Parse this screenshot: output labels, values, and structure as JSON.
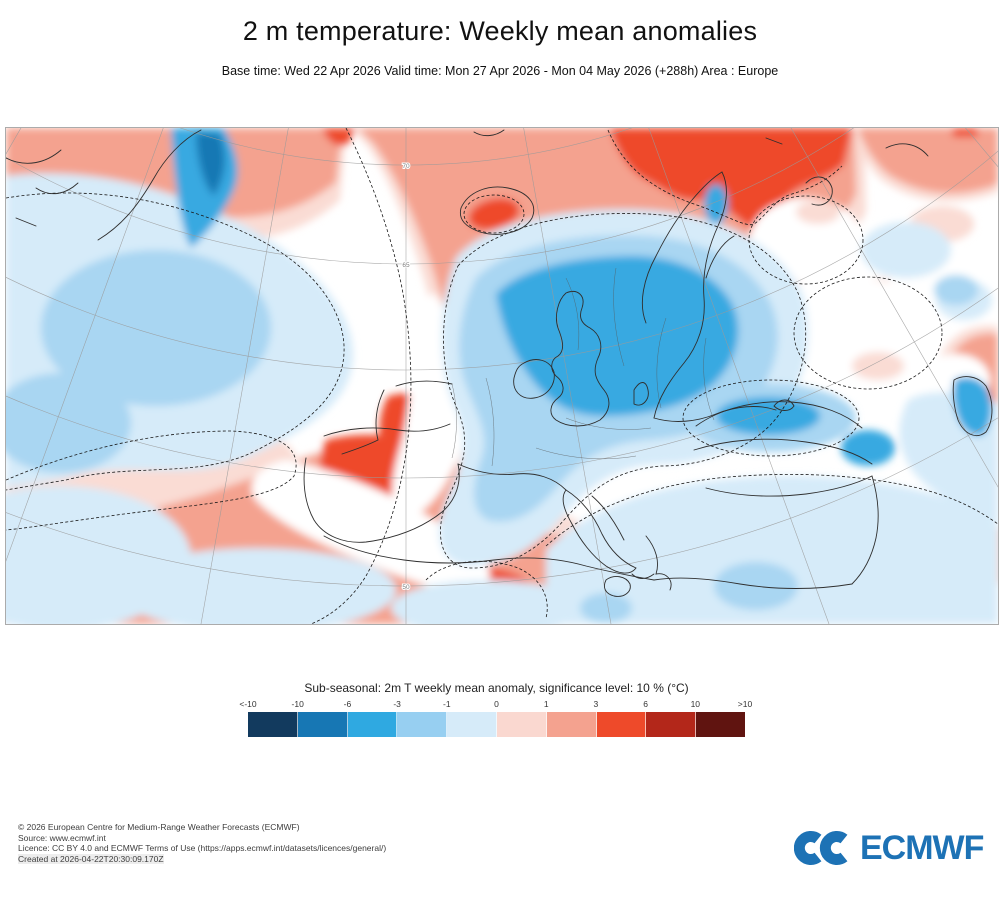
{
  "header": {
    "title": "2 m temperature: Weekly mean anomalies",
    "subtitle": "Base time: Wed 22 Apr 2026 Valid time: Mon 27 Apr 2026 - Mon 04 May 2026 (+288h) Area : Europe"
  },
  "map": {
    "area": "Europe",
    "lat_labels": [
      "70",
      "65",
      "50"
    ]
  },
  "legend": {
    "title": "Sub-seasonal: 2m T weekly mean anomaly, significance level: 10 % (°C)",
    "tick_labels": [
      "<-10",
      "-10",
      "-6",
      "-3",
      "-1",
      "0",
      "1",
      "3",
      "6",
      "10",
      ">10"
    ],
    "colors": [
      "#123a5e",
      "#1777b4",
      "#2fa9e1",
      "#97cff1",
      "#d6ebf9",
      "#fad8d0",
      "#f4a28f",
      "#ee4a2a",
      "#b3271a",
      "#601410"
    ]
  },
  "footer": {
    "lines": [
      "© 2026 European Centre for Medium-Range Weather Forecasts (ECMWF)",
      "Source: www.ecmwf.int",
      "Licence: CC BY 4.0 and ECMWF Terms of Use (https://apps.ecmwf.int/datasets/licences/general/)",
      "Created at 2026-04-22T20:30:09.170Z"
    ],
    "logo_text": "ECMWF",
    "logo_color": "#1d72b5"
  }
}
